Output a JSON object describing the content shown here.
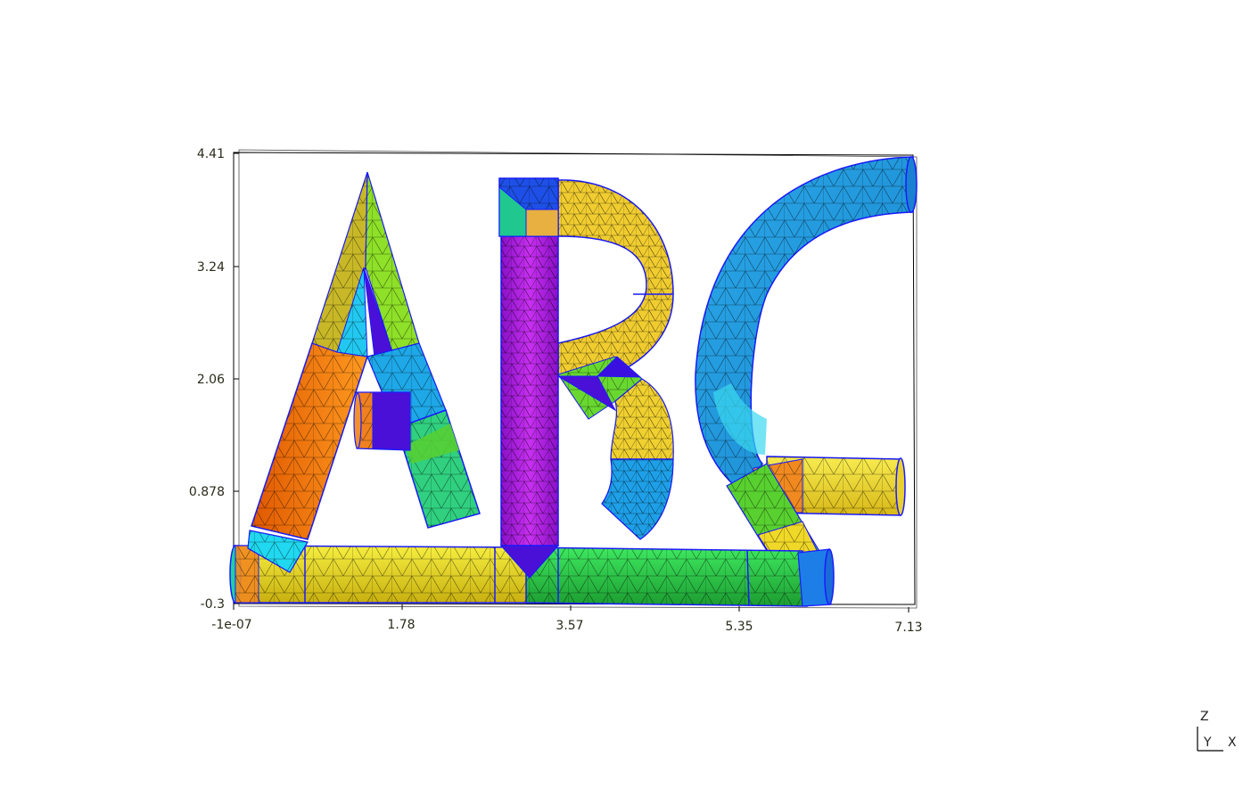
{
  "viewer": {
    "axes": {
      "z_ticks": [
        "4.41",
        "3.24",
        "2.06",
        "0.878",
        "-0.3"
      ],
      "x_ticks": [
        "-1e-07",
        "1.78",
        "3.57",
        "5.35",
        "7.13"
      ]
    },
    "orientation": {
      "z_label": "Z",
      "y_label": "Y",
      "x_label": "X"
    }
  },
  "colors": {
    "mesh_line": "#000000",
    "edge_line": "#1a1aff",
    "orange": "#ff7a00",
    "yellow": "#f4e428",
    "olive": "#c8b820",
    "green": "#55d82a",
    "lime": "#a8e830",
    "cyan": "#20c8e8",
    "sky": "#1e9fe0",
    "blue": "#1e50e8",
    "violet": "#4a10d8",
    "purple": "#b020e8",
    "teal": "#14d0a0",
    "darkgreen": "#24b038"
  }
}
